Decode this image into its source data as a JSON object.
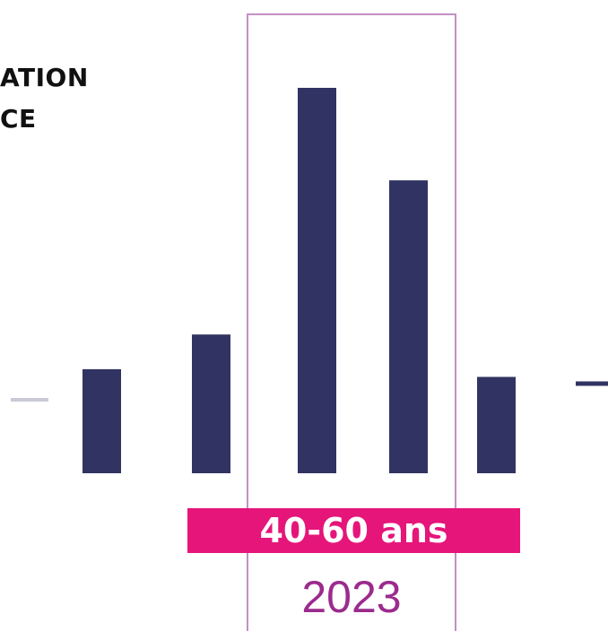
{
  "title_lines": [
    "ATION",
    "CE"
  ],
  "colors": {
    "bar": "#313462",
    "baseline_left": "#c9cad6",
    "highlight_frame": "#c48fc4",
    "banner": "#e5157a",
    "year": "#9b2b8d",
    "corner_shape": "#8e2a8f"
  },
  "chart_data": {
    "type": "bar",
    "highlight": {
      "label": "40-60 ans",
      "year": "2023",
      "bar_indices": [
        2,
        3
      ]
    },
    "values": [
      27,
      36,
      100,
      76,
      25
    ],
    "ylim": [
      0,
      100
    ],
    "partial_marks": [
      "left-edge-dash",
      "right-edge-dash"
    ]
  }
}
